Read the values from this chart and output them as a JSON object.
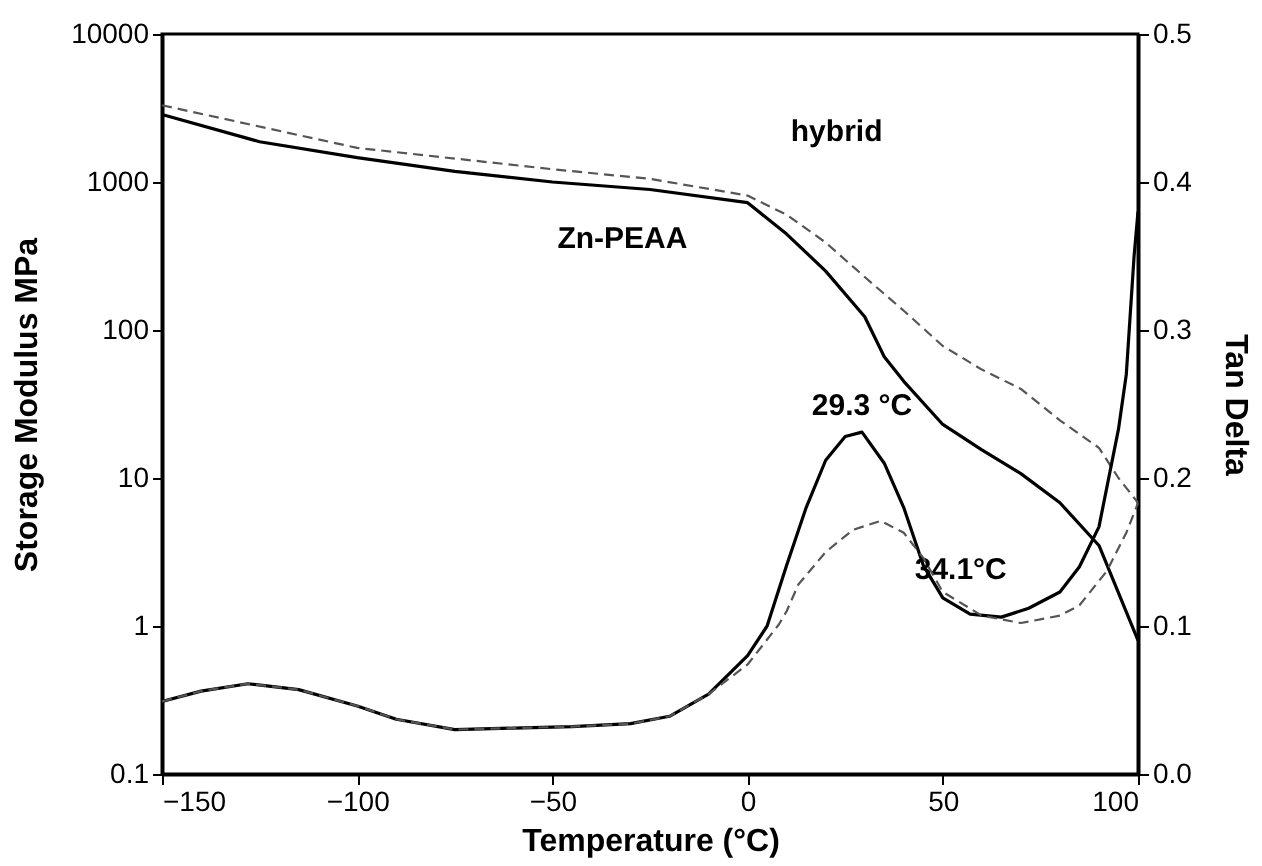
{
  "chart_data": {
    "type": "line",
    "xlabel": "Temperature (°C)",
    "ylabel": "Storage Modulus MPa",
    "y2label": "Tan Delta",
    "xlim": [
      -150,
      100
    ],
    "xticks": [
      -150,
      -100,
      -50,
      0,
      50,
      100
    ],
    "ylim": [
      0.1,
      10000
    ],
    "yticks": [
      0.1,
      1,
      10,
      100,
      1000,
      10000
    ],
    "log": "y",
    "y2lim": [
      0,
      0.5
    ],
    "y2ticks": [
      {
        "value": 0,
        "label": "0.0"
      },
      0.1,
      0.2,
      0.3,
      0.4,
      0.5
    ],
    "grid": false,
    "marker": "none",
    "series": [
      {
        "color": "#000000",
        "line_style": "solid",
        "x": [
          -150,
          -125,
          -100,
          -75,
          -50,
          -25,
          0,
          10,
          20,
          30,
          35,
          40,
          50,
          60,
          70,
          80,
          90,
          100
        ],
        "values": [
          2860,
          1870,
          1460,
          1180,
          1000,
          890,
          725,
          445,
          250,
          123,
          66,
          45,
          23,
          15.5,
          10.7,
          6.8,
          3.5,
          0.8
        ]
      },
      {
        "color": "#555555",
        "line_style": "dashed",
        "x": [
          -150,
          -100,
          -50,
          -25,
          0,
          10,
          20,
          30,
          40,
          50,
          60,
          70,
          80,
          90,
          95,
          100
        ],
        "values": [
          3300,
          1700,
          1220,
          1050,
          810,
          600,
          390,
          228,
          135,
          78,
          54,
          40,
          24.5,
          16,
          10,
          6.8
        ]
      },
      {
        "color": "#000000",
        "line_style": "solid",
        "axis": "y2",
        "x": [
          -150,
          -140,
          -128,
          -115,
          -100,
          -90,
          -75,
          -60,
          -45,
          -30,
          -20,
          -10,
          0,
          5,
          10,
          15,
          20,
          25,
          29.3,
          35,
          40,
          45,
          50,
          57,
          65,
          72,
          80,
          85,
          90,
          95,
          97,
          99,
          100
        ],
        "values": [
          0.049,
          0.056,
          0.061,
          0.057,
          0.046,
          0.037,
          0.03,
          0.031,
          0.032,
          0.034,
          0.039,
          0.054,
          0.08,
          0.1,
          0.141,
          0.18,
          0.212,
          0.228,
          0.231,
          0.21,
          0.18,
          0.141,
          0.119,
          0.108,
          0.106,
          0.112,
          0.123,
          0.14,
          0.167,
          0.233,
          0.27,
          0.35,
          0.38
        ]
      },
      {
        "color": "#555555",
        "line_style": "dashed",
        "axis": "y2",
        "x": [
          -150,
          -140,
          -128,
          -115,
          -100,
          -90,
          -75,
          -60,
          -45,
          -30,
          -20,
          -10,
          0,
          8,
          10,
          13,
          20,
          27,
          34.1,
          40,
          45,
          50,
          60,
          70,
          80,
          85,
          92,
          97,
          100
        ],
        "values": [
          0.049,
          0.056,
          0.061,
          0.057,
          0.046,
          0.037,
          0.03,
          0.031,
          0.032,
          0.034,
          0.039,
          0.054,
          0.074,
          0.101,
          0.11,
          0.128,
          0.15,
          0.165,
          0.171,
          0.163,
          0.146,
          0.123,
          0.107,
          0.102,
          0.107,
          0.114,
          0.137,
          0.163,
          0.183
        ]
      }
    ],
    "annotations": [
      {
        "text": "Zn-PEAA",
        "x": -50,
        "y": 1000
      },
      {
        "text": "hybrid",
        "x": 10,
        "y": 600
      },
      {
        "text": "29.3 °C",
        "x": 29.3,
        "y": 20
      },
      {
        "text": "34.1°C",
        "x": 34.1,
        "y": 5.1
      }
    ]
  }
}
